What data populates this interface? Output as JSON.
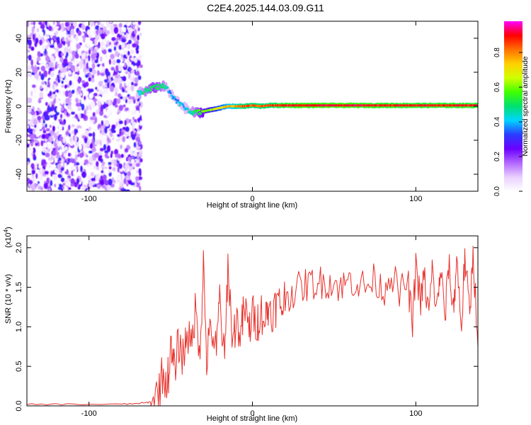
{
  "chart_data": [
    {
      "type": "heatmap",
      "title": "C2E4.2025.144.03.09.G11",
      "xlabel": "Height of straight line (km)",
      "ylabel": "Frequency (Hz)",
      "xlim": [
        -138,
        138
      ],
      "ylim": [
        -50,
        50
      ],
      "xticks": [
        -100,
        0,
        100
      ],
      "yticks": [
        -40,
        -20,
        0,
        20,
        40
      ],
      "colorbar": {
        "label": "Normalized spectral amplitude",
        "range": [
          0,
          0.98
        ],
        "ticks": [
          "0.0",
          "0.2",
          "0.4",
          "0.6",
          "0.8"
        ],
        "tick_values": [
          0,
          0.2,
          0.4,
          0.6,
          0.8
        ],
        "colors": [
          "#ffffff",
          "#e9d0ff",
          "#b266ff",
          "#6a00ff",
          "#2a3cff",
          "#00d5ff",
          "#00e070",
          "#40ff00",
          "#d0ff00",
          "#ffd000",
          "#ff7000",
          "#ff0000",
          "#ff00ff"
        ]
      },
      "noise_region": {
        "x": [
          -138,
          -68
        ],
        "y": [
          -50,
          50
        ]
      },
      "ridge": {
        "x": [
          -70,
          -65,
          -60,
          -55,
          -52,
          -50,
          -45,
          -40,
          -35,
          -30,
          -25,
          -20,
          -15,
          -10,
          -5,
          0,
          5,
          10,
          20,
          40,
          60,
          80,
          100,
          120,
          138
        ],
        "y": [
          8,
          9,
          11,
          12,
          10,
          7,
          2,
          -2,
          -4,
          -3,
          -2,
          -1,
          0,
          0,
          0,
          0.5,
          0,
          0.5,
          0.5,
          0.5,
          0.5,
          0.5,
          0.5,
          0.5,
          0.5
        ],
        "amplitude": [
          0.45,
          0.5,
          0.55,
          0.5,
          0.45,
          0.4,
          0.4,
          0.45,
          0.5,
          0.6,
          0.65,
          0.7,
          0.75,
          0.8,
          0.85,
          0.85,
          0.85,
          0.85,
          0.9,
          0.92,
          0.92,
          0.9,
          0.9,
          0.9,
          0.9
        ]
      },
      "grid": false
    },
    {
      "type": "line",
      "xlabel": "Height of straight line (km)",
      "ylabel": "SNR (10 * v/v)",
      "y_multiplier": "(x10",
      "y_multiplier_exp": "4",
      "y_multiplier_close": ")",
      "xlim": [
        -138,
        138
      ],
      "ylim": [
        0,
        2.15
      ],
      "xticks": [
        -100,
        0,
        100
      ],
      "yticks": [
        "0.0",
        "0.5",
        "1.0",
        "1.5",
        "2.0"
      ],
      "ytick_values": [
        0,
        0.5,
        1.0,
        1.5,
        2.0
      ],
      "series": [
        {
          "color": "#e8302a",
          "x": [
            -138,
            -120,
            -100,
            -80,
            -70,
            -65,
            -62,
            -58,
            -55,
            -52,
            -50,
            -48,
            -45,
            -42,
            -40,
            -38,
            -35,
            -32,
            -30,
            -28,
            -25,
            -22,
            -20,
            -17,
            -15,
            -12,
            -10,
            -7,
            -5,
            -2,
            0,
            3,
            5,
            8,
            10,
            13,
            15,
            18,
            20,
            25,
            30,
            35,
            40,
            45,
            50,
            55,
            60,
            65,
            70,
            75,
            80,
            85,
            90,
            95,
            98,
            100,
            103,
            105,
            108,
            110,
            113,
            115,
            118,
            120,
            123,
            125,
            128,
            130,
            133,
            135,
            138
          ],
          "y": [
            0.02,
            0.02,
            0.02,
            0.02,
            0.03,
            0.04,
            0.05,
            0.15,
            0.4,
            0.3,
            0.7,
            0.45,
            0.8,
            0.6,
            1.0,
            0.7,
            1.2,
            0.75,
            1.8,
            0.6,
            1.0,
            0.65,
            1.4,
            0.5,
            1.8,
            0.8,
            1.1,
            0.9,
            1.25,
            0.95,
            1.15,
            1.05,
            1.2,
            1.1,
            1.25,
            1.2,
            1.3,
            1.25,
            1.38,
            1.45,
            1.5,
            1.55,
            1.55,
            1.58,
            1.55,
            1.5,
            1.6,
            1.55,
            1.5,
            1.6,
            1.45,
            1.7,
            1.4,
            1.6,
            1.0,
            1.8,
            1.3,
            1.65,
            1.15,
            1.7,
            1.2,
            1.75,
            1.1,
            1.8,
            1.2,
            1.85,
            1.0,
            1.9,
            1.1,
            2.0,
            0.75
          ]
        }
      ],
      "grid": false
    }
  ]
}
